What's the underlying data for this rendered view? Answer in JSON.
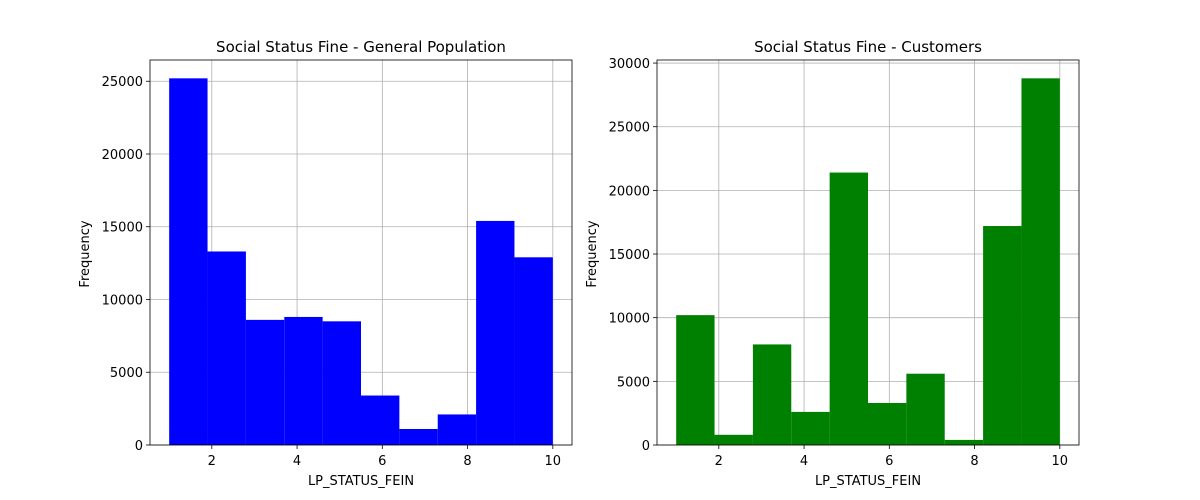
{
  "chart_data": [
    {
      "type": "bar",
      "title": "Social Status Fine - General Population",
      "xlabel": "LP_STATUS_FEIN",
      "ylabel": "Frequency",
      "bin_edges": [
        1.0,
        1.9,
        2.8,
        3.7,
        4.6,
        5.5,
        6.4,
        7.3,
        8.2,
        9.1,
        10.0
      ],
      "values": [
        25200,
        13300,
        8600,
        8800,
        8500,
        3400,
        1100,
        2100,
        15400,
        12900
      ],
      "xlim": [
        0.55,
        10.45
      ],
      "ylim": [
        0,
        26460
      ],
      "xticks": [
        2,
        4,
        6,
        8,
        10
      ],
      "yticks": [
        0,
        5000,
        10000,
        15000,
        20000,
        25000
      ],
      "grid": true,
      "color": "#0000ff"
    },
    {
      "type": "bar",
      "title": "Social Status Fine - Customers",
      "xlabel": "LP_STATUS_FEIN",
      "ylabel": "Frequency",
      "bin_edges": [
        1.0,
        1.9,
        2.8,
        3.7,
        4.6,
        5.5,
        6.4,
        7.3,
        8.2,
        9.1,
        10.0
      ],
      "values": [
        10200,
        800,
        7900,
        2600,
        21400,
        3300,
        5600,
        400,
        17200,
        28800
      ],
      "xlim": [
        0.55,
        10.45
      ],
      "ylim": [
        0,
        30240
      ],
      "xticks": [
        2,
        4,
        6,
        8,
        10
      ],
      "yticks": [
        0,
        5000,
        10000,
        15000,
        20000,
        25000,
        30000
      ],
      "grid": true,
      "color": "#008000"
    }
  ]
}
